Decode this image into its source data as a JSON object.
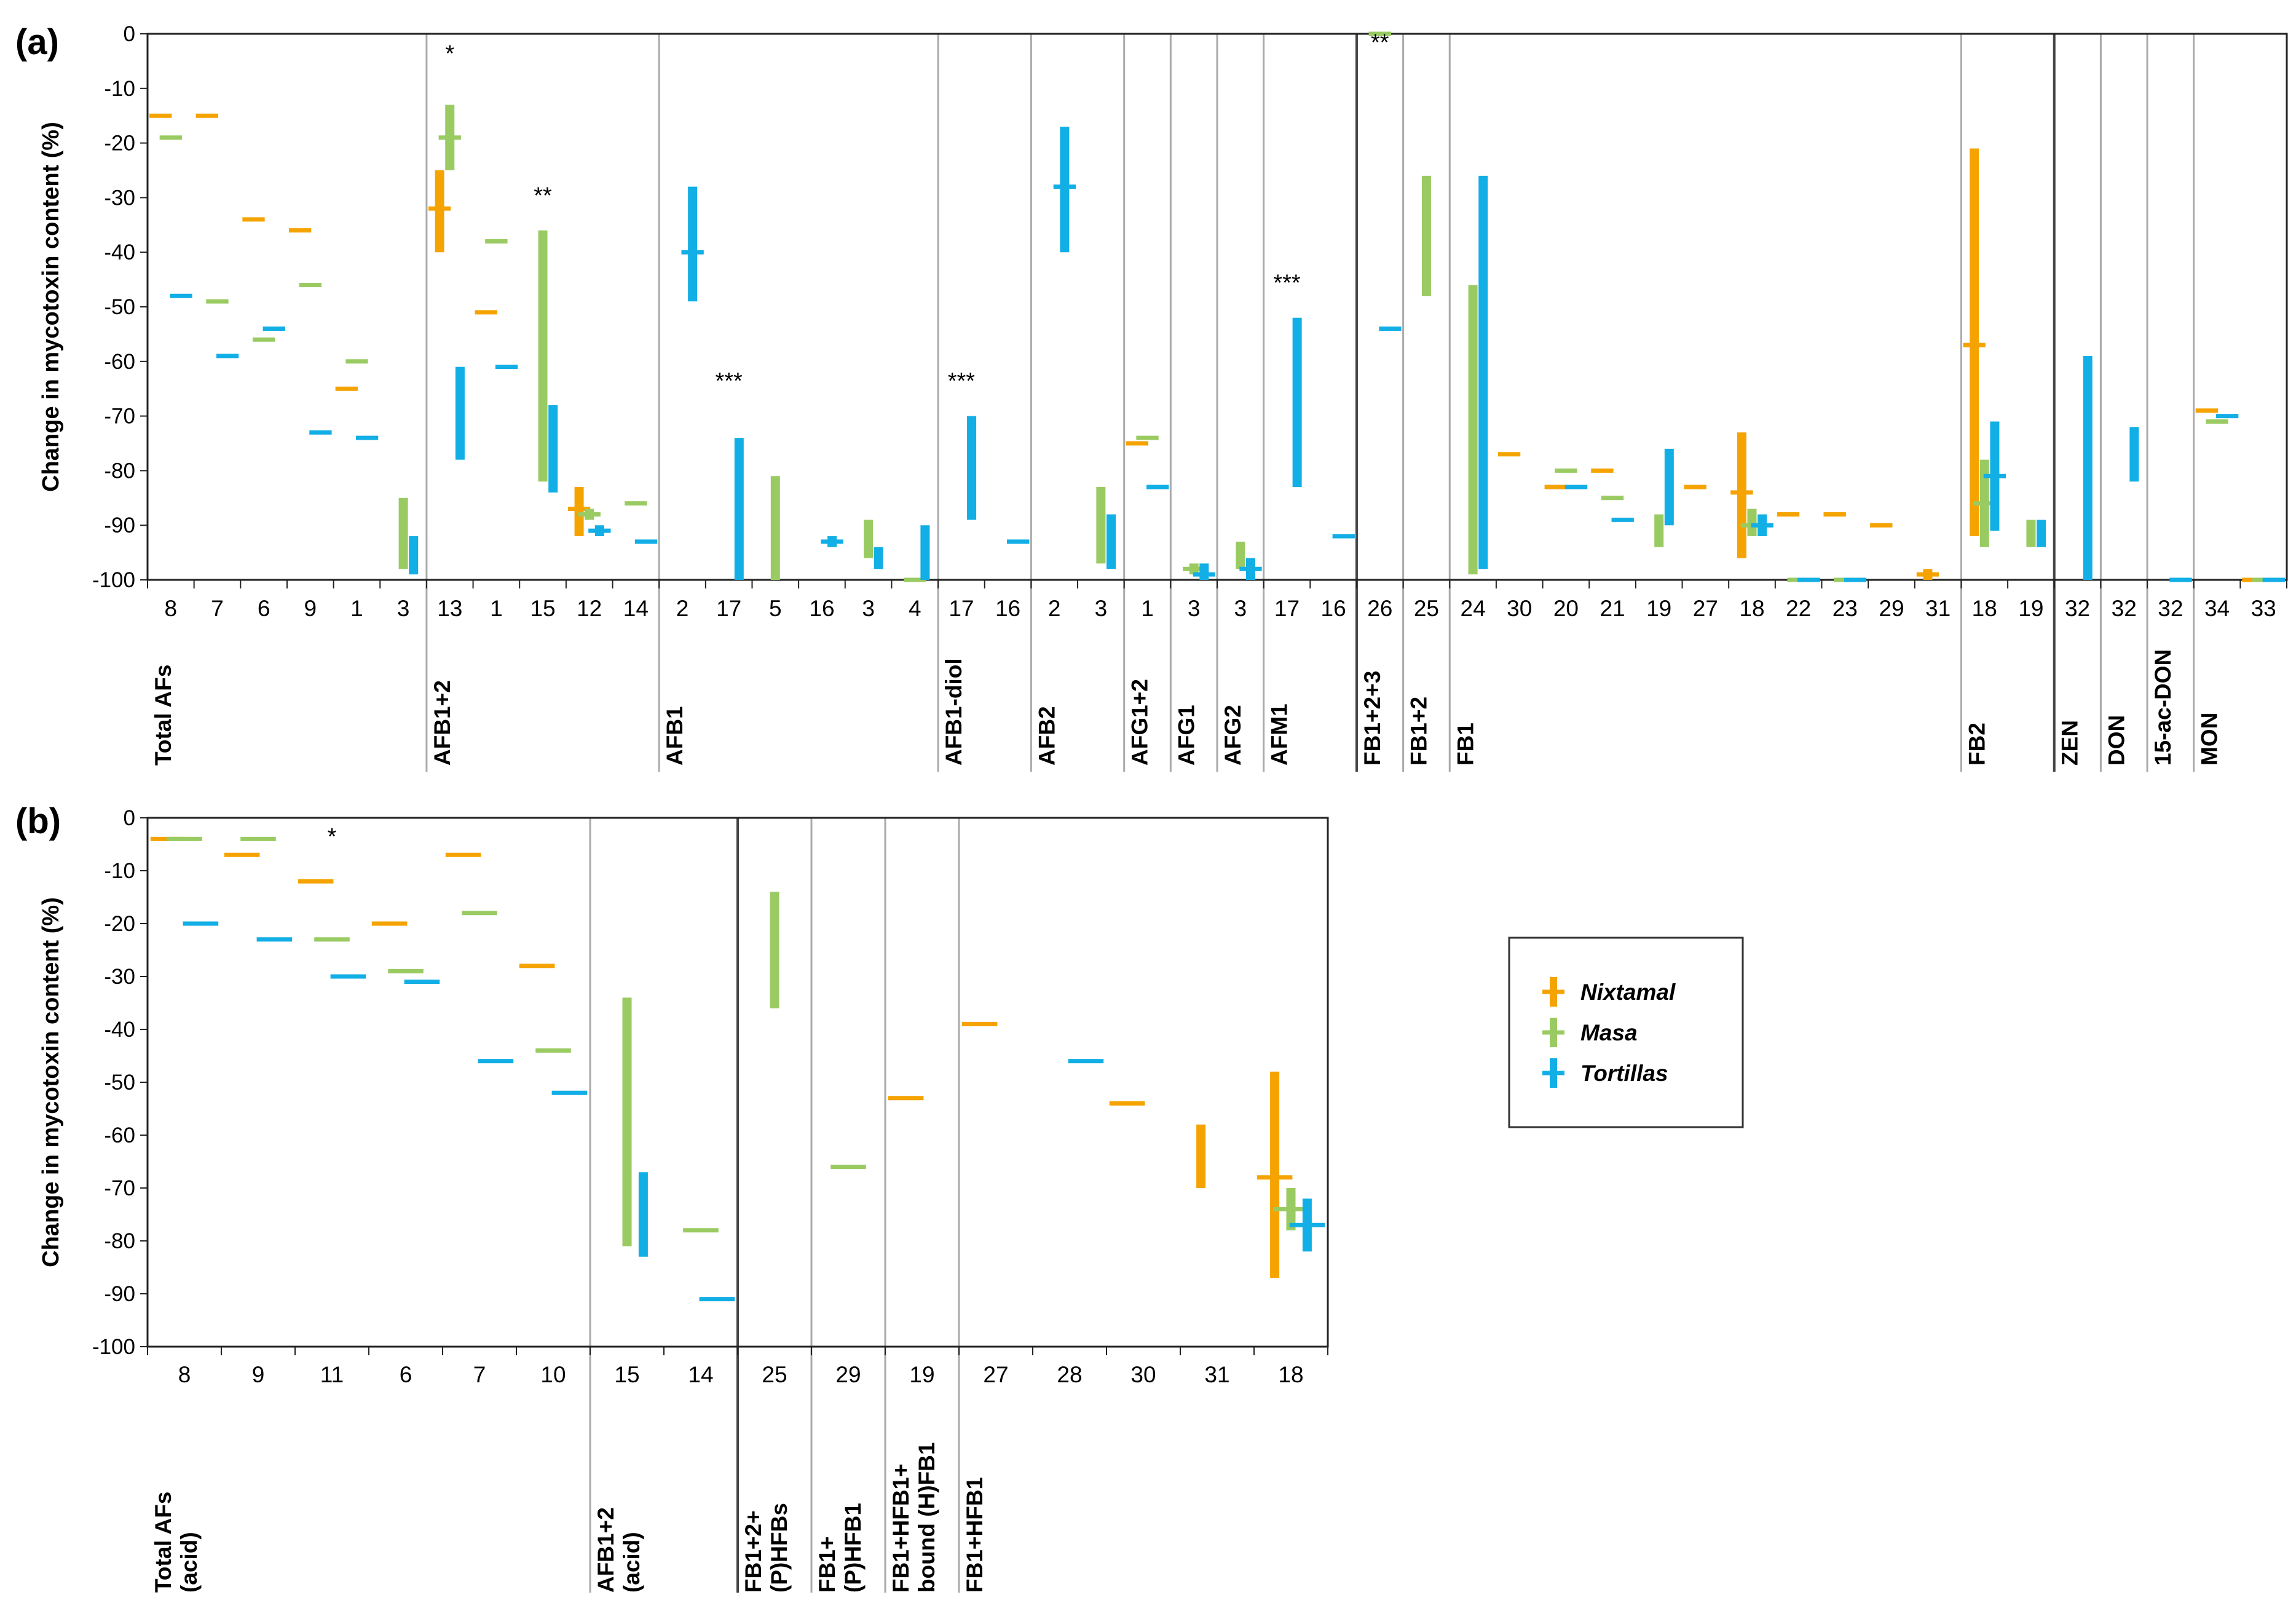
{
  "colors": {
    "nixtamal": "#F5A300",
    "masa": "#9ACB62",
    "tortillas": "#12AEE6",
    "axis": "#222222",
    "divider": "#AAAAAA"
  },
  "legend": [
    {
      "key": "nixtamal",
      "label": "Nixtamal"
    },
    {
      "key": "masa",
      "label": "Masa"
    },
    {
      "key": "tortillas",
      "label": "Tortillas"
    }
  ],
  "chart_data": [
    {
      "panel_label": "(a)",
      "type": "range-bar",
      "ylabel": "Change in mycotoxin content (%)",
      "ylim": [
        -100,
        0
      ],
      "yticks": [
        0,
        -10,
        -20,
        -30,
        -40,
        -50,
        -60,
        -70,
        -80,
        -90,
        -100
      ],
      "categories": [
        "8",
        "7",
        "6",
        "9",
        "1",
        "3",
        "13",
        "1",
        "15",
        "12",
        "14",
        "2",
        "17",
        "5",
        "16",
        "3",
        "4",
        "17",
        "16",
        "2",
        "3",
        "1",
        "3",
        "3",
        "17",
        "16",
        "26",
        "25",
        "24",
        "30",
        "20",
        "21",
        "19",
        "27",
        "18",
        "22",
        "23",
        "29",
        "31",
        "18",
        "19",
        "32",
        "32",
        "32",
        "34",
        "33"
      ],
      "groups": [
        {
          "label": "Total AFs",
          "start": 0,
          "end": 5
        },
        {
          "label": "AFB1+2",
          "start": 6,
          "end": 10
        },
        {
          "label": "AFB1",
          "start": 11,
          "end": 16
        },
        {
          "label": "AFB1-diol",
          "start": 17,
          "end": 18
        },
        {
          "label": "AFB2",
          "start": 19,
          "end": 20
        },
        {
          "label": "AFG1+2",
          "start": 21,
          "end": 21
        },
        {
          "label": "AFG1",
          "start": 22,
          "end": 22
        },
        {
          "label": "AFG2",
          "start": 23,
          "end": 23
        },
        {
          "label": "AFM1",
          "start": 24,
          "end": 25
        },
        {
          "label": "FB1+2+3",
          "start": 26,
          "end": 26
        },
        {
          "label": "FB1+2",
          "start": 27,
          "end": 27
        },
        {
          "label": "FB1",
          "start": 28,
          "end": 38
        },
        {
          "label": "FB2",
          "start": 39,
          "end": 40
        },
        {
          "label": "ZEN",
          "start": 41,
          "end": 41
        },
        {
          "label": "DON",
          "start": 42,
          "end": 42
        },
        {
          "label": "15-ac-DON",
          "start": 43,
          "end": 43
        },
        {
          "label": "MON",
          "start": 44,
          "end": 45
        }
      ],
      "dark_dividers_after": [
        25,
        40
      ],
      "annotations": [
        {
          "index": 6,
          "text": "*",
          "y": -5
        },
        {
          "index": 8,
          "text": "**",
          "y": -31
        },
        {
          "index": 12,
          "text": "***",
          "y": -65
        },
        {
          "index": 17,
          "text": "***",
          "y": -65
        },
        {
          "index": 24,
          "text": "***",
          "y": -47
        },
        {
          "index": 26,
          "text": "**",
          "y": -3
        }
      ],
      "series": [
        {
          "name": "Nixtamal",
          "key": "nixtamal",
          "points": [
            {
              "i": 0,
              "mean": -15
            },
            {
              "i": 1,
              "mean": -15
            },
            {
              "i": 2,
              "mean": -34
            },
            {
              "i": 3,
              "mean": -36
            },
            {
              "i": 4,
              "mean": -65
            },
            {
              "i": 6,
              "mean": -32,
              "min": -40,
              "max": -25
            },
            {
              "i": 7,
              "mean": -51
            },
            {
              "i": 9,
              "mean": -87,
              "min": -92,
              "max": -83
            },
            {
              "i": 21,
              "mean": -75
            },
            {
              "i": 29,
              "mean": -77
            },
            {
              "i": 30,
              "mean": -83
            },
            {
              "i": 31,
              "mean": -80
            },
            {
              "i": 33,
              "mean": -83
            },
            {
              "i": 34,
              "mean": -84,
              "min": -96,
              "max": -73
            },
            {
              "i": 35,
              "mean": -88
            },
            {
              "i": 36,
              "mean": -88
            },
            {
              "i": 37,
              "mean": -90
            },
            {
              "i": 38,
              "mean": -99,
              "min": -100,
              "max": -98
            },
            {
              "i": 39,
              "mean": -57,
              "min": -92,
              "max": -21
            },
            {
              "i": 44,
              "mean": -69
            },
            {
              "i": 45,
              "mean": -100
            }
          ]
        },
        {
          "name": "Masa",
          "key": "masa",
          "points": [
            {
              "i": 0,
              "mean": -19
            },
            {
              "i": 1,
              "mean": -49
            },
            {
              "i": 2,
              "mean": -56
            },
            {
              "i": 3,
              "mean": -46
            },
            {
              "i": 4,
              "mean": -60
            },
            {
              "i": 5,
              "min": -98,
              "max": -85
            },
            {
              "i": 6,
              "mean": -19,
              "min": -25,
              "max": -13
            },
            {
              "i": 7,
              "mean": -38
            },
            {
              "i": 8,
              "min": -82,
              "max": -36
            },
            {
              "i": 9,
              "mean": -88,
              "min": -89,
              "max": -87
            },
            {
              "i": 10,
              "mean": -86
            },
            {
              "i": 13,
              "min": -100,
              "max": -81
            },
            {
              "i": 15,
              "min": -96,
              "max": -89
            },
            {
              "i": 16,
              "mean": -100
            },
            {
              "i": 20,
              "min": -97,
              "max": -83
            },
            {
              "i": 21,
              "mean": -74
            },
            {
              "i": 22,
              "mean": -98,
              "min": -99,
              "max": -97
            },
            {
              "i": 23,
              "min": -98,
              "max": -93
            },
            {
              "i": 26,
              "mean": 0
            },
            {
              "i": 27,
              "min": -48,
              "max": -26
            },
            {
              "i": 28,
              "min": -99,
              "max": -46
            },
            {
              "i": 30,
              "mean": -80
            },
            {
              "i": 31,
              "mean": -85
            },
            {
              "i": 32,
              "min": -94,
              "max": -88
            },
            {
              "i": 34,
              "mean": -90,
              "min": -92,
              "max": -87
            },
            {
              "i": 35,
              "mean": -100
            },
            {
              "i": 36,
              "mean": -100
            },
            {
              "i": 39,
              "mean": -86,
              "min": -94,
              "max": -78
            },
            {
              "i": 40,
              "min": -94,
              "max": -89
            },
            {
              "i": 44,
              "mean": -71
            },
            {
              "i": 45,
              "mean": -100
            }
          ]
        },
        {
          "name": "Tortillas",
          "key": "tortillas",
          "points": [
            {
              "i": 0,
              "mean": -48
            },
            {
              "i": 1,
              "mean": -59
            },
            {
              "i": 2,
              "mean": -54
            },
            {
              "i": 3,
              "mean": -73
            },
            {
              "i": 4,
              "mean": -74
            },
            {
              "i": 5,
              "min": -99,
              "max": -92
            },
            {
              "i": 6,
              "min": -78,
              "max": -61
            },
            {
              "i": 7,
              "mean": -61
            },
            {
              "i": 8,
              "min": -84,
              "max": -68
            },
            {
              "i": 9,
              "mean": -91,
              "min": -92,
              "max": -90
            },
            {
              "i": 10,
              "mean": -93
            },
            {
              "i": 11,
              "mean": -40,
              "min": -49,
              "max": -28
            },
            {
              "i": 12,
              "min": -100,
              "max": -74
            },
            {
              "i": 14,
              "mean": -93,
              "min": -94,
              "max": -92
            },
            {
              "i": 15,
              "min": -98,
              "max": -94
            },
            {
              "i": 16,
              "min": -100,
              "max": -90
            },
            {
              "i": 17,
              "min": -89,
              "max": -70
            },
            {
              "i": 18,
              "mean": -93
            },
            {
              "i": 19,
              "mean": -28,
              "min": -40,
              "max": -17
            },
            {
              "i": 20,
              "min": -98,
              "max": -88
            },
            {
              "i": 21,
              "mean": -83
            },
            {
              "i": 22,
              "mean": -99,
              "min": -100,
              "max": -97
            },
            {
              "i": 23,
              "mean": -98,
              "min": -100,
              "max": -96
            },
            {
              "i": 24,
              "min": -83,
              "max": -52
            },
            {
              "i": 25,
              "mean": -92
            },
            {
              "i": 26,
              "mean": -54
            },
            {
              "i": 28,
              "min": -98,
              "max": -26
            },
            {
              "i": 30,
              "mean": -83
            },
            {
              "i": 31,
              "mean": -89
            },
            {
              "i": 32,
              "min": -90,
              "max": -76
            },
            {
              "i": 34,
              "mean": -90,
              "min": -92,
              "max": -88
            },
            {
              "i": 35,
              "mean": -100
            },
            {
              "i": 36,
              "mean": -100
            },
            {
              "i": 39,
              "mean": -81,
              "min": -91,
              "max": -71
            },
            {
              "i": 40,
              "min": -94,
              "max": -89
            },
            {
              "i": 41,
              "min": -100,
              "max": -59
            },
            {
              "i": 42,
              "min": -82,
              "max": -72
            },
            {
              "i": 43,
              "mean": -100
            },
            {
              "i": 44,
              "mean": -70
            },
            {
              "i": 45,
              "mean": -100
            }
          ]
        }
      ]
    },
    {
      "panel_label": "(b)",
      "type": "range-bar",
      "ylabel": "Change in mycotoxin content (%)",
      "ylim": [
        -100,
        0
      ],
      "yticks": [
        0,
        -10,
        -20,
        -30,
        -40,
        -50,
        -60,
        -70,
        -80,
        -90,
        -100
      ],
      "categories": [
        "8",
        "9",
        "11",
        "6",
        "7",
        "10",
        "15",
        "14",
        "25",
        "29",
        "19",
        "27",
        "28",
        "30",
        "31",
        "18"
      ],
      "groups": [
        {
          "label": "Total AFs",
          "label2": "(acid)",
          "start": 0,
          "end": 5
        },
        {
          "label": "AFB1+2",
          "label2": "(acid)",
          "start": 6,
          "end": 7
        },
        {
          "label": "FB1+2+",
          "label2": "(P)HFBs",
          "start": 8,
          "end": 8
        },
        {
          "label": "FB1+",
          "label2": "(P)HFB1",
          "start": 9,
          "end": 9
        },
        {
          "label": "FB1+HFB1+",
          "label2": "bound (H)FB1",
          "start": 10,
          "end": 10
        },
        {
          "label": "FB1+HFB1",
          "start": 11,
          "end": 15
        }
      ],
      "dark_dividers_after": [
        7
      ],
      "annotations": [
        {
          "index": 2,
          "text": "*",
          "y": -5
        }
      ],
      "series": [
        {
          "name": "Nixtamal",
          "key": "nixtamal",
          "points": [
            {
              "i": 0,
              "mean": -4
            },
            {
              "i": 1,
              "mean": -7
            },
            {
              "i": 2,
              "mean": -12
            },
            {
              "i": 3,
              "mean": -20
            },
            {
              "i": 4,
              "mean": -7
            },
            {
              "i": 5,
              "mean": -28
            },
            {
              "i": 10,
              "mean": -53
            },
            {
              "i": 11,
              "mean": -39
            },
            {
              "i": 13,
              "mean": -54
            },
            {
              "i": 14,
              "min": -70,
              "max": -58
            },
            {
              "i": 15,
              "mean": -68,
              "min": -87,
              "max": -48
            }
          ]
        },
        {
          "name": "Masa",
          "key": "masa",
          "points": [
            {
              "i": 0,
              "mean": -4
            },
            {
              "i": 1,
              "mean": -4
            },
            {
              "i": 2,
              "mean": -23
            },
            {
              "i": 3,
              "mean": -29
            },
            {
              "i": 4,
              "mean": -18
            },
            {
              "i": 5,
              "mean": -44
            },
            {
              "i": 6,
              "min": -81,
              "max": -34
            },
            {
              "i": 7,
              "mean": -78
            },
            {
              "i": 8,
              "min": -36,
              "max": -14
            },
            {
              "i": 9,
              "mean": -66
            },
            {
              "i": 15,
              "mean": -74,
              "min": -78,
              "max": -70
            }
          ]
        },
        {
          "name": "Tortillas",
          "key": "tortillas",
          "points": [
            {
              "i": 0,
              "mean": -20
            },
            {
              "i": 1,
              "mean": -23
            },
            {
              "i": 2,
              "mean": -30
            },
            {
              "i": 3,
              "mean": -31
            },
            {
              "i": 4,
              "mean": -46
            },
            {
              "i": 5,
              "mean": -52
            },
            {
              "i": 6,
              "min": -83,
              "max": -67
            },
            {
              "i": 7,
              "mean": -91
            },
            {
              "i": 12,
              "mean": -46
            },
            {
              "i": 15,
              "mean": -77,
              "min": -82,
              "max": -72
            }
          ]
        }
      ]
    }
  ]
}
